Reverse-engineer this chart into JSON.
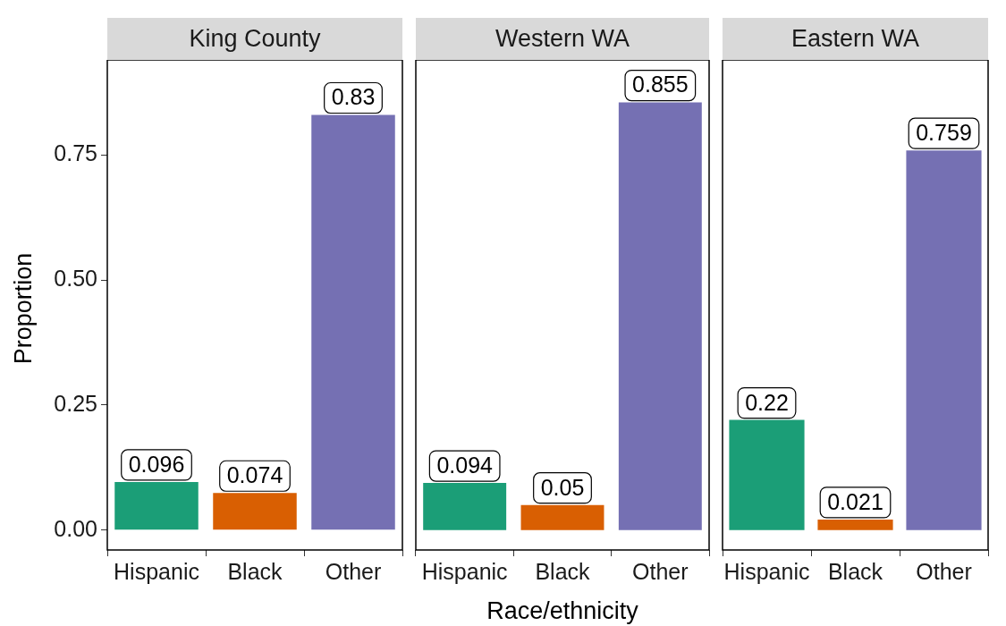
{
  "chart_data": [
    {
      "type": "bar",
      "title": "King County",
      "ylabel": "Proportion",
      "categories": [
        "Hispanic",
        "Black",
        "Other"
      ],
      "values": [
        0.096,
        0.074,
        0.83
      ],
      "colors": [
        "#1b9e77",
        "#d95f02",
        "#7570b3"
      ],
      "ylim": [
        -0.04,
        0.94
      ],
      "yticks": [
        {
          "value": 0,
          "label": "0.00"
        },
        {
          "value": 0.25,
          "label": "0.25"
        },
        {
          "value": 0.5,
          "label": "0.50"
        },
        {
          "value": 0.75,
          "label": "0.75"
        }
      ],
      "data_labels": true
    },
    {
      "type": "bar",
      "title": "Western WA",
      "xlabel": "Race/ethnicity",
      "categories": [
        "Hispanic",
        "Black",
        "Other"
      ],
      "values": [
        0.094,
        0.05,
        0.855
      ],
      "colors": [
        "#1b9e77",
        "#d95f02",
        "#7570b3"
      ],
      "ylim": [
        -0.04,
        0.94
      ],
      "data_labels": true,
      "tick_labels": "x"
    },
    {
      "type": "bar",
      "title": "Eastern WA",
      "categories": [
        "Hispanic",
        "Black",
        "Other"
      ],
      "values": [
        0.22,
        0.021,
        0.759
      ],
      "colors": [
        "#1b9e77",
        "#d95f02",
        "#7570b3"
      ],
      "ylim": [
        -0.04,
        0.94
      ],
      "data_labels": true,
      "tick_labels": "x"
    }
  ]
}
